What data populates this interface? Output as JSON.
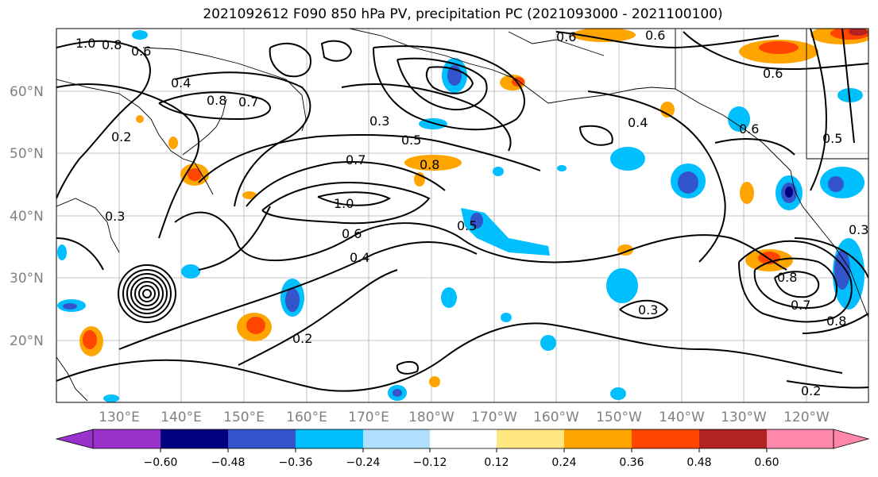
{
  "title": "2021092612 F090 850 hPa PV, precipitation PC (2021093000 - 2021100100)",
  "lat_labels": [
    "60°N",
    "50°N",
    "40°N",
    "30°N",
    "20°N"
  ],
  "lon_labels": [
    "130°E",
    "140°E",
    "150°E",
    "160°E",
    "170°E",
    "180°W",
    "170°W",
    "160°W",
    "150°W",
    "140°W",
    "130°W",
    "120°W"
  ],
  "contour_labels": [
    "1.0",
    "0.8",
    "0.6",
    "0.4",
    "0.8",
    "0.7",
    "0.2",
    "0.3",
    "0.5",
    "0.8",
    "0.7",
    "1.0",
    "0.6",
    "0.4",
    "0.3",
    "0.2",
    "0.5",
    "0.6",
    "0.6",
    "0.6",
    "0.4",
    "0.6",
    "0.5",
    "0.8",
    "0.7",
    "0.3",
    "0.2",
    "0.8",
    "0.3"
  ],
  "colorbar": {
    "tick_labels": [
      "−0.60",
      "−0.48",
      "−0.36",
      "−0.24",
      "−0.12",
      "0.12",
      "0.24",
      "0.36",
      "0.48",
      "0.60"
    ],
    "colors": [
      "#9933cc",
      "#000080",
      "#3355cc",
      "#00bfff",
      "#b0e0ff",
      "#ffffff",
      "#ffe680",
      "#ffa500",
      "#ff4500",
      "#b22222",
      "#ff88aa"
    ]
  },
  "precip_colors": {
    "blue_light": "#00bfff",
    "blue_mid": "#3355cc",
    "blue_dark": "#000080",
    "orange": "#ffa500",
    "red": "#ff4500",
    "yellow": "#ffe680"
  }
}
